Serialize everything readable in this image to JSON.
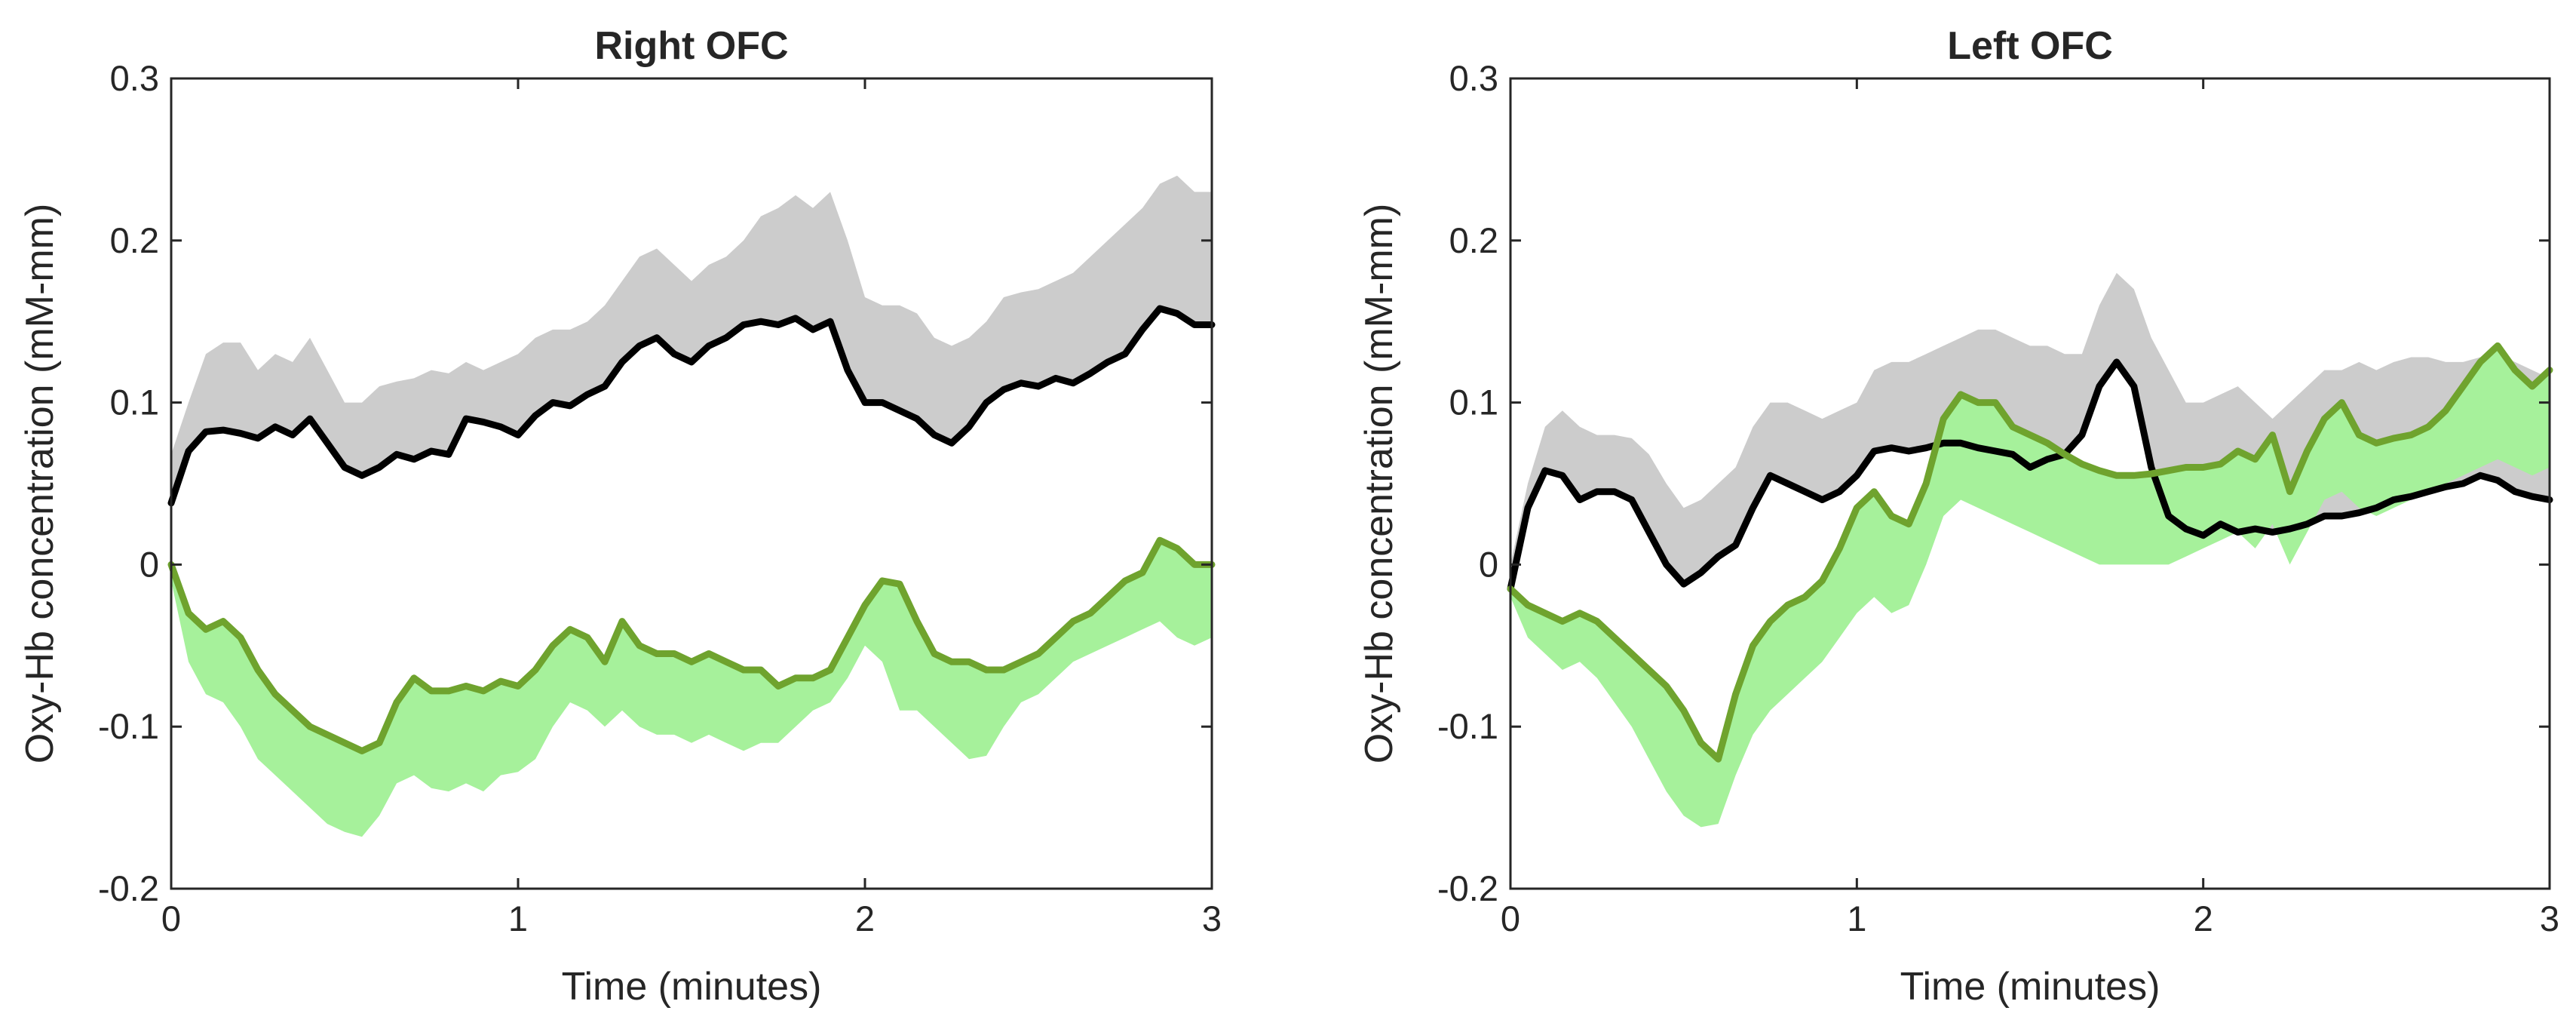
{
  "chart_data": [
    {
      "type": "line",
      "title": "Right OFC",
      "xlabel": "Time (minutes)",
      "ylabel": "Oxy-Hb concentration (mM-mm)",
      "xlim": [
        0,
        3
      ],
      "ylim": [
        -0.2,
        0.3
      ],
      "xticks": [
        0,
        1,
        2,
        3
      ],
      "yticks": [
        -0.2,
        -0.1,
        0,
        0.1,
        0.2,
        0.3
      ],
      "xtick_labels": [
        "0",
        "1",
        "2",
        "3"
      ],
      "ytick_labels": [
        "-0.2",
        "-0.1",
        "0",
        "0.1",
        "0.2",
        "0.3"
      ],
      "x": [
        0,
        0.05,
        0.1,
        0.15,
        0.2,
        0.25,
        0.3,
        0.35,
        0.4,
        0.45,
        0.5,
        0.55,
        0.6,
        0.65,
        0.7,
        0.75,
        0.8,
        0.85,
        0.9,
        0.95,
        1.0,
        1.05,
        1.1,
        1.15,
        1.2,
        1.25,
        1.3,
        1.35,
        1.4,
        1.45,
        1.5,
        1.55,
        1.6,
        1.65,
        1.7,
        1.75,
        1.8,
        1.85,
        1.9,
        1.95,
        2.0,
        2.05,
        2.1,
        2.15,
        2.2,
        2.25,
        2.3,
        2.35,
        2.4,
        2.45,
        2.5,
        2.55,
        2.6,
        2.65,
        2.7,
        2.75,
        2.8,
        2.85,
        2.9,
        2.95,
        3.0
      ],
      "series": [
        {
          "name": "black-mean",
          "color": "#000000",
          "values": [
            0.038,
            0.07,
            0.082,
            0.083,
            0.081,
            0.078,
            0.085,
            0.08,
            0.09,
            0.075,
            0.06,
            0.055,
            0.06,
            0.068,
            0.065,
            0.07,
            0.068,
            0.09,
            0.088,
            0.085,
            0.08,
            0.092,
            0.1,
            0.098,
            0.105,
            0.11,
            0.125,
            0.135,
            0.14,
            0.13,
            0.125,
            0.135,
            0.14,
            0.148,
            0.15,
            0.148,
            0.152,
            0.145,
            0.15,
            0.12,
            0.1,
            0.1,
            0.095,
            0.09,
            0.08,
            0.075,
            0.085,
            0.1,
            0.108,
            0.112,
            0.11,
            0.115,
            0.112,
            0.118,
            0.125,
            0.13,
            0.145,
            0.158,
            0.155,
            0.148,
            0.148
          ],
          "band_upper": [
            0.068,
            0.1,
            0.13,
            0.137,
            0.137,
            0.12,
            0.13,
            0.125,
            0.14,
            0.12,
            0.1,
            0.1,
            0.11,
            0.113,
            0.115,
            0.12,
            0.118,
            0.125,
            0.12,
            0.125,
            0.13,
            0.14,
            0.145,
            0.145,
            0.15,
            0.16,
            0.175,
            0.19,
            0.195,
            0.185,
            0.175,
            0.185,
            0.19,
            0.2,
            0.215,
            0.22,
            0.228,
            0.22,
            0.23,
            0.2,
            0.165,
            0.16,
            0.16,
            0.155,
            0.14,
            0.135,
            0.14,
            0.15,
            0.165,
            0.168,
            0.17,
            0.175,
            0.18,
            0.19,
            0.2,
            0.21,
            0.22,
            0.235,
            0.24,
            0.23,
            0.23
          ],
          "band_lower": [
            0.04,
            0.07,
            0.082,
            0.083,
            0.081,
            0.078,
            0.085,
            0.08,
            0.09,
            0.075,
            0.06,
            0.055,
            0.06,
            0.068,
            0.065,
            0.07,
            0.068,
            0.09,
            0.088,
            0.085,
            0.08,
            0.092,
            0.1,
            0.098,
            0.105,
            0.11,
            0.125,
            0.135,
            0.14,
            0.13,
            0.125,
            0.135,
            0.14,
            0.148,
            0.15,
            0.148,
            0.152,
            0.145,
            0.15,
            0.12,
            0.1,
            0.1,
            0.095,
            0.09,
            0.08,
            0.075,
            0.085,
            0.1,
            0.108,
            0.112,
            0.11,
            0.115,
            0.112,
            0.118,
            0.125,
            0.13,
            0.145,
            0.158,
            0.155,
            0.148,
            0.148
          ],
          "band_color": "#cccccc"
        },
        {
          "name": "green-mean",
          "color": "#6fa32e",
          "values": [
            0.0,
            -0.03,
            -0.04,
            -0.035,
            -0.045,
            -0.065,
            -0.08,
            -0.09,
            -0.1,
            -0.105,
            -0.11,
            -0.115,
            -0.11,
            -0.085,
            -0.07,
            -0.078,
            -0.078,
            -0.075,
            -0.078,
            -0.072,
            -0.075,
            -0.065,
            -0.05,
            -0.04,
            -0.045,
            -0.06,
            -0.035,
            -0.05,
            -0.055,
            -0.055,
            -0.06,
            -0.055,
            -0.06,
            -0.065,
            -0.065,
            -0.075,
            -0.07,
            -0.07,
            -0.065,
            -0.045,
            -0.025,
            -0.01,
            -0.012,
            -0.035,
            -0.055,
            -0.06,
            -0.06,
            -0.065,
            -0.065,
            -0.06,
            -0.055,
            -0.045,
            -0.035,
            -0.03,
            -0.02,
            -0.01,
            -0.005,
            0.015,
            0.01,
            0.0,
            0.0
          ],
          "band_upper": [
            0.0,
            -0.03,
            -0.04,
            -0.035,
            -0.045,
            -0.065,
            -0.08,
            -0.09,
            -0.1,
            -0.105,
            -0.11,
            -0.115,
            -0.11,
            -0.085,
            -0.07,
            -0.078,
            -0.078,
            -0.075,
            -0.078,
            -0.072,
            -0.075,
            -0.065,
            -0.05,
            -0.04,
            -0.045,
            -0.06,
            -0.035,
            -0.05,
            -0.055,
            -0.055,
            -0.06,
            -0.055,
            -0.06,
            -0.065,
            -0.065,
            -0.075,
            -0.07,
            -0.07,
            -0.065,
            -0.045,
            -0.025,
            -0.01,
            -0.012,
            -0.035,
            -0.055,
            -0.06,
            -0.06,
            -0.065,
            -0.065,
            -0.06,
            -0.055,
            -0.045,
            -0.035,
            -0.03,
            -0.02,
            -0.01,
            -0.005,
            0.015,
            0.01,
            0.0,
            0.0
          ],
          "band_lower": [
            -0.01,
            -0.06,
            -0.08,
            -0.085,
            -0.1,
            -0.12,
            -0.13,
            -0.14,
            -0.15,
            -0.16,
            -0.165,
            -0.168,
            -0.155,
            -0.135,
            -0.13,
            -0.138,
            -0.14,
            -0.135,
            -0.14,
            -0.13,
            -0.128,
            -0.12,
            -0.1,
            -0.085,
            -0.09,
            -0.1,
            -0.09,
            -0.1,
            -0.105,
            -0.105,
            -0.11,
            -0.105,
            -0.11,
            -0.115,
            -0.11,
            -0.11,
            -0.1,
            -0.09,
            -0.085,
            -0.07,
            -0.05,
            -0.06,
            -0.09,
            -0.09,
            -0.1,
            -0.11,
            -0.12,
            -0.118,
            -0.1,
            -0.085,
            -0.08,
            -0.07,
            -0.06,
            -0.055,
            -0.05,
            -0.045,
            -0.04,
            -0.035,
            -0.045,
            -0.05,
            -0.045
          ],
          "band_color": "#a6f19b"
        }
      ]
    },
    {
      "type": "line",
      "title": "Left OFC",
      "xlabel": "Time (minutes)",
      "ylabel": "Oxy-Hb concentration (mM-mm)",
      "xlim": [
        0,
        3
      ],
      "ylim": [
        -0.2,
        0.3
      ],
      "xticks": [
        0,
        1,
        2,
        3
      ],
      "yticks": [
        -0.2,
        -0.1,
        0,
        0.1,
        0.2,
        0.3
      ],
      "xtick_labels": [
        "0",
        "1",
        "2",
        "3"
      ],
      "ytick_labels": [
        "-0.2",
        "-0.1",
        "0",
        "0.1",
        "0.2",
        "0.3"
      ],
      "x": [
        0,
        0.05,
        0.1,
        0.15,
        0.2,
        0.25,
        0.3,
        0.35,
        0.4,
        0.45,
        0.5,
        0.55,
        0.6,
        0.65,
        0.7,
        0.75,
        0.8,
        0.85,
        0.9,
        0.95,
        1.0,
        1.05,
        1.1,
        1.15,
        1.2,
        1.25,
        1.3,
        1.35,
        1.4,
        1.45,
        1.5,
        1.55,
        1.6,
        1.65,
        1.7,
        1.75,
        1.8,
        1.85,
        1.9,
        1.95,
        2.0,
        2.05,
        2.1,
        2.15,
        2.2,
        2.25,
        2.3,
        2.35,
        2.4,
        2.45,
        2.5,
        2.55,
        2.6,
        2.65,
        2.7,
        2.75,
        2.8,
        2.85,
        2.9,
        2.95,
        3.0
      ],
      "series": [
        {
          "name": "black-mean",
          "color": "#000000",
          "values": [
            -0.015,
            0.035,
            0.058,
            0.055,
            0.04,
            0.045,
            0.045,
            0.04,
            0.02,
            0.0,
            -0.012,
            -0.005,
            0.005,
            0.012,
            0.035,
            0.055,
            0.05,
            0.045,
            0.04,
            0.045,
            0.055,
            0.07,
            0.072,
            0.07,
            0.072,
            0.075,
            0.075,
            0.072,
            0.07,
            0.068,
            0.06,
            0.065,
            0.068,
            0.08,
            0.11,
            0.125,
            0.11,
            0.06,
            0.03,
            0.022,
            0.018,
            0.025,
            0.02,
            0.022,
            0.02,
            0.022,
            0.025,
            0.03,
            0.03,
            0.032,
            0.035,
            0.04,
            0.042,
            0.045,
            0.048,
            0.05,
            0.055,
            0.052,
            0.045,
            0.042,
            0.04
          ],
          "band_upper": [
            0.0,
            0.05,
            0.085,
            0.095,
            0.085,
            0.08,
            0.08,
            0.078,
            0.068,
            0.05,
            0.035,
            0.04,
            0.05,
            0.06,
            0.085,
            0.1,
            0.1,
            0.095,
            0.09,
            0.095,
            0.1,
            0.12,
            0.125,
            0.125,
            0.13,
            0.135,
            0.14,
            0.145,
            0.145,
            0.14,
            0.135,
            0.135,
            0.13,
            0.13,
            0.16,
            0.18,
            0.17,
            0.14,
            0.12,
            0.1,
            0.1,
            0.105,
            0.11,
            0.1,
            0.09,
            0.1,
            0.11,
            0.12,
            0.12,
            0.125,
            0.12,
            0.125,
            0.128,
            0.128,
            0.125,
            0.125,
            0.128,
            0.13,
            0.125,
            0.12,
            0.115
          ],
          "band_lower": [
            -0.015,
            0.035,
            0.058,
            0.055,
            0.04,
            0.045,
            0.045,
            0.04,
            0.02,
            0.0,
            -0.012,
            -0.005,
            0.005,
            0.012,
            0.035,
            0.055,
            0.05,
            0.045,
            0.04,
            0.045,
            0.055,
            0.07,
            0.072,
            0.07,
            0.072,
            0.075,
            0.075,
            0.072,
            0.07,
            0.068,
            0.06,
            0.065,
            0.068,
            0.08,
            0.11,
            0.125,
            0.11,
            0.06,
            0.03,
            0.022,
            0.018,
            0.025,
            0.02,
            0.022,
            0.02,
            0.022,
            0.025,
            0.03,
            0.03,
            0.032,
            0.035,
            0.04,
            0.042,
            0.045,
            0.048,
            0.05,
            0.055,
            0.052,
            0.045,
            0.042,
            0.04
          ],
          "band_color": "#cccccc"
        },
        {
          "name": "green-mean",
          "color": "#6fa32e",
          "values": [
            -0.015,
            -0.025,
            -0.03,
            -0.035,
            -0.03,
            -0.035,
            -0.045,
            -0.055,
            -0.065,
            -0.075,
            -0.09,
            -0.11,
            -0.12,
            -0.08,
            -0.05,
            -0.035,
            -0.025,
            -0.02,
            -0.01,
            0.01,
            0.035,
            0.045,
            0.03,
            0.025,
            0.05,
            0.09,
            0.105,
            0.1,
            0.1,
            0.085,
            0.08,
            0.075,
            0.068,
            0.062,
            0.058,
            0.055,
            0.055,
            0.056,
            0.058,
            0.06,
            0.06,
            0.062,
            0.07,
            0.065,
            0.08,
            0.045,
            0.07,
            0.09,
            0.1,
            0.08,
            0.075,
            0.078,
            0.08,
            0.085,
            0.095,
            0.11,
            0.125,
            0.135,
            0.12,
            0.11,
            0.12
          ],
          "band_upper": [
            -0.015,
            -0.025,
            -0.03,
            -0.035,
            -0.03,
            -0.035,
            -0.045,
            -0.055,
            -0.065,
            -0.075,
            -0.09,
            -0.11,
            -0.12,
            -0.08,
            -0.05,
            -0.035,
            -0.025,
            -0.02,
            -0.01,
            0.01,
            0.035,
            0.045,
            0.03,
            0.025,
            0.05,
            0.09,
            0.105,
            0.1,
            0.1,
            0.085,
            0.08,
            0.075,
            0.068,
            0.062,
            0.058,
            0.055,
            0.055,
            0.056,
            0.058,
            0.06,
            0.06,
            0.062,
            0.07,
            0.065,
            0.08,
            0.045,
            0.07,
            0.09,
            0.1,
            0.08,
            0.075,
            0.078,
            0.08,
            0.085,
            0.095,
            0.11,
            0.125,
            0.135,
            0.12,
            0.11,
            0.12
          ],
          "band_lower": [
            -0.02,
            -0.045,
            -0.055,
            -0.065,
            -0.06,
            -0.07,
            -0.085,
            -0.1,
            -0.12,
            -0.14,
            -0.155,
            -0.162,
            -0.16,
            -0.13,
            -0.105,
            -0.09,
            -0.08,
            -0.07,
            -0.06,
            -0.045,
            -0.03,
            -0.02,
            -0.03,
            -0.025,
            0.0,
            0.03,
            0.04,
            0.035,
            0.03,
            0.025,
            0.02,
            0.015,
            0.01,
            0.005,
            0.0,
            0.0,
            0.0,
            0.0,
            0.0,
            0.005,
            0.01,
            0.015,
            0.02,
            0.01,
            0.025,
            0.0,
            0.02,
            0.04,
            0.045,
            0.035,
            0.03,
            0.035,
            0.04,
            0.045,
            0.05,
            0.055,
            0.06,
            0.065,
            0.06,
            0.055,
            0.06
          ],
          "band_color": "#a6f19b"
        }
      ]
    }
  ]
}
